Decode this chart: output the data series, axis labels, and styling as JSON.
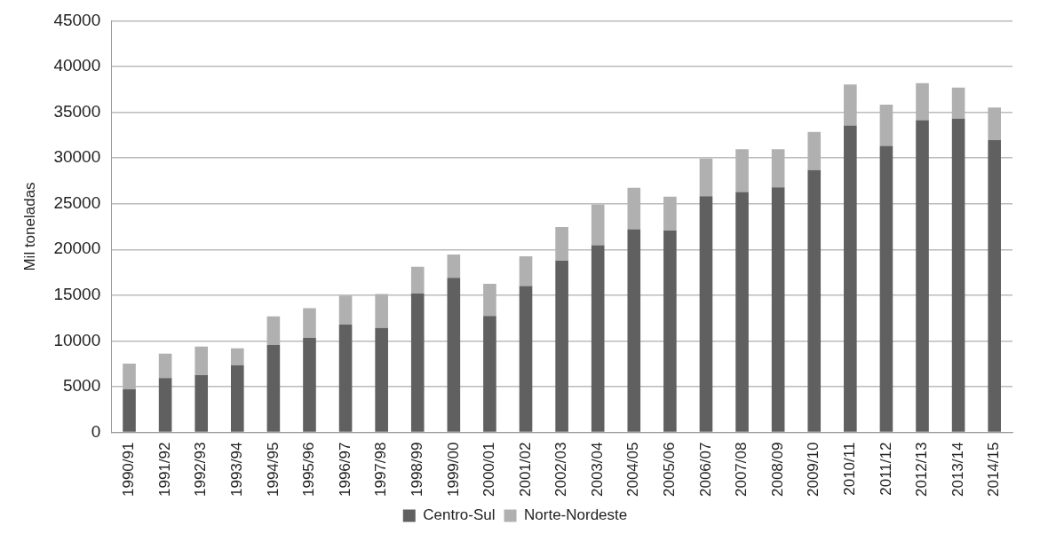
{
  "chart_data": {
    "type": "bar",
    "stacked": true,
    "ylabel": "Mil toneladas",
    "categories": [
      "1990/91",
      "1991/92",
      "1992/93",
      "1993/94",
      "1994/95",
      "1995/96",
      "1996/97",
      "1997/98",
      "1998/99",
      "1999/00",
      "2000/01",
      "2001/02",
      "2002/03",
      "2003/04",
      "2004/05",
      "2005/06",
      "2006/07",
      "2007/08",
      "2008/09",
      "2009/10",
      "2010/11",
      "2011/12",
      "2012/13",
      "2013/14",
      "2014/15"
    ],
    "series": [
      {
        "name": "Centro-Sul",
        "color": "#606060",
        "values": [
          4700,
          5950,
          6260,
          7360,
          9550,
          10330,
          11780,
          11420,
          15180,
          16900,
          12720,
          16000,
          18770,
          20470,
          22210,
          22050,
          25810,
          26290,
          26780,
          28680,
          33540,
          31310,
          34140,
          34300,
          31960
        ]
      },
      {
        "name": "Norte-Nordeste",
        "color": "#b0b0b0",
        "values": [
          2810,
          2650,
          3130,
          1830,
          3130,
          3250,
          3170,
          3720,
          2930,
          2540,
          3520,
          3250,
          3680,
          4450,
          4530,
          3720,
          4130,
          4660,
          4170,
          4170,
          4490,
          4530,
          4050,
          3400,
          3560
        ]
      }
    ],
    "ylim": [
      0,
      45000
    ],
    "yticks": [
      0,
      5000,
      10000,
      15000,
      20000,
      25000,
      30000,
      35000,
      40000,
      45000
    ],
    "grid": "y",
    "legend": "bottom"
  }
}
